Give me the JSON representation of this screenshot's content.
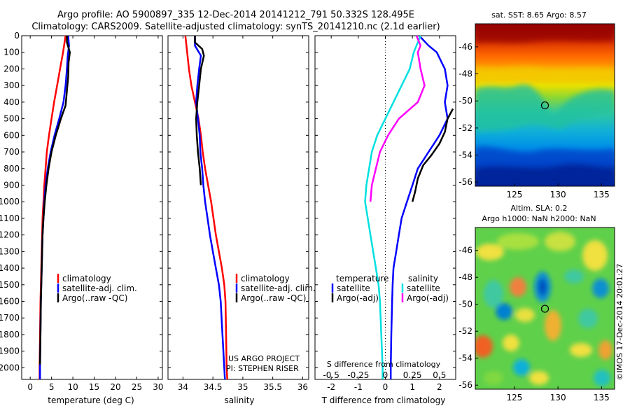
{
  "header": {
    "title_line1": "Argo profile: AO 5900897_335 12-Dec-2014 20141212_791 50.332S 128.495E",
    "title_line2": "Climatology: CARS2009. Satellite-adjusted climatology: synTS_20141210.nc (2.1d earlier)"
  },
  "credit": {
    "project": "US ARGO PROJECT",
    "pi": "PI: STEPHEN RISER",
    "imos": "©IMOS 17-Dec-2014 20:01:27"
  },
  "maps": {
    "sst_title": "sat. SST: 8.65  Argo: 8.57",
    "sla_title1": "Altim. SLA: 0.2",
    "sla_title2": "Argo h1000: NaN h2000: NaN"
  },
  "chart_data": [
    {
      "type": "line",
      "id": "temperature",
      "xlabel": "temperature (deg C)",
      "ylabel": "",
      "xlim": [
        -2,
        31
      ],
      "ylim": [
        2070,
        0
      ],
      "xticks": [
        0,
        5,
        10,
        15,
        20,
        25,
        30
      ],
      "yticks": [
        0,
        100,
        200,
        300,
        400,
        500,
        600,
        700,
        800,
        900,
        1000,
        1100,
        1200,
        1300,
        1400,
        1500,
        1600,
        1700,
        1800,
        1900,
        2000
      ],
      "legend": [
        "climatology",
        "satellite-adj. clim.",
        "Argo(..raw -QC)"
      ],
      "legend_position": "lower-left",
      "series": [
        {
          "name": "climatology",
          "color": "#ff0000",
          "points": [
            [
              8.3,
              0
            ],
            [
              7.7,
              100
            ],
            [
              7.0,
              200
            ],
            [
              6.3,
              300
            ],
            [
              5.6,
              400
            ],
            [
              5.0,
              500
            ],
            [
              4.4,
              600
            ],
            [
              3.9,
              700
            ],
            [
              3.6,
              800
            ],
            [
              3.3,
              900
            ],
            [
              3.1,
              1000
            ],
            [
              2.9,
              1100
            ],
            [
              2.8,
              1200
            ],
            [
              2.7,
              1300
            ],
            [
              2.6,
              1400
            ],
            [
              2.5,
              1500
            ],
            [
              2.4,
              1600
            ],
            [
              2.3,
              1800
            ],
            [
              2.2,
              2000
            ],
            [
              2.2,
              2070
            ]
          ]
        },
        {
          "name": "satellite-adj. clim.",
          "color": "#0000ff",
          "points": [
            [
              8.9,
              0
            ],
            [
              9.1,
              60
            ],
            [
              8.8,
              120
            ],
            [
              8.6,
              200
            ],
            [
              8.3,
              300
            ],
            [
              7.8,
              400
            ],
            [
              6.8,
              500
            ],
            [
              5.7,
              600
            ],
            [
              4.8,
              700
            ],
            [
              4.1,
              800
            ],
            [
              3.6,
              900
            ],
            [
              3.3,
              1000
            ],
            [
              3.1,
              1100
            ],
            [
              2.9,
              1200
            ],
            [
              2.8,
              1300
            ],
            [
              2.7,
              1400
            ],
            [
              2.6,
              1500
            ],
            [
              2.5,
              1600
            ],
            [
              2.4,
              1800
            ],
            [
              2.3,
              2000
            ],
            [
              2.3,
              2070
            ]
          ]
        },
        {
          "name": "Argo(..raw -QC)",
          "color": "#000000",
          "points": [
            [
              8.6,
              0
            ],
            [
              8.6,
              40
            ],
            [
              9.3,
              100
            ],
            [
              9.0,
              160
            ],
            [
              8.9,
              250
            ],
            [
              8.6,
              330
            ],
            [
              8.3,
              420
            ],
            [
              7.2,
              500
            ],
            [
              6.0,
              600
            ],
            [
              5.0,
              700
            ],
            [
              4.3,
              800
            ],
            [
              3.8,
              900
            ],
            [
              3.4,
              1000
            ],
            [
              3.1,
              1100
            ],
            [
              2.9,
              1200
            ],
            [
              2.8,
              1300
            ],
            [
              2.7,
              1400
            ],
            [
              2.6,
              1500
            ],
            [
              2.5,
              1600
            ],
            [
              2.4,
              1800
            ],
            [
              2.3,
              1980
            ]
          ]
        }
      ]
    },
    {
      "type": "line",
      "id": "salinity",
      "xlabel": "salinity",
      "ylabel": "",
      "xlim": [
        33.75,
        36.1
      ],
      "ylim": [
        2070,
        0
      ],
      "xticks": [
        34,
        34.5,
        35,
        35.5,
        36
      ],
      "legend": [
        "climatology",
        "satellite-adj. clim.",
        "Argo(..raw -QC)"
      ],
      "legend_position": "lower-right",
      "series": [
        {
          "name": "climatology",
          "color": "#ff0000",
          "points": [
            [
              34.04,
              0
            ],
            [
              34.07,
              100
            ],
            [
              34.1,
              200
            ],
            [
              34.14,
              300
            ],
            [
              34.2,
              400
            ],
            [
              34.26,
              500
            ],
            [
              34.3,
              600
            ],
            [
              34.33,
              700
            ],
            [
              34.37,
              800
            ],
            [
              34.42,
              900
            ],
            [
              34.47,
              1000
            ],
            [
              34.51,
              1100
            ],
            [
              34.55,
              1200
            ],
            [
              34.6,
              1300
            ],
            [
              34.65,
              1400
            ],
            [
              34.69,
              1500
            ],
            [
              34.71,
              1600
            ],
            [
              34.72,
              1800
            ],
            [
              34.73,
              2000
            ],
            [
              34.74,
              2070
            ]
          ]
        },
        {
          "name": "satellite-adj. clim.",
          "color": "#0000ff",
          "points": [
            [
              34.2,
              0
            ],
            [
              34.2,
              60
            ],
            [
              34.3,
              120
            ],
            [
              34.27,
              200
            ],
            [
              34.24,
              300
            ],
            [
              34.22,
              400
            ],
            [
              34.25,
              500
            ],
            [
              34.28,
              600
            ],
            [
              34.29,
              700
            ],
            [
              34.32,
              800
            ],
            [
              34.34,
              900
            ],
            [
              34.37,
              1000
            ],
            [
              34.41,
              1100
            ],
            [
              34.45,
              1200
            ],
            [
              34.5,
              1300
            ],
            [
              34.55,
              1400
            ],
            [
              34.6,
              1500
            ],
            [
              34.63,
              1600
            ],
            [
              34.66,
              1800
            ],
            [
              34.69,
              2000
            ],
            [
              34.7,
              2070
            ]
          ]
        },
        {
          "name": "Argo(..raw -QC)",
          "color": "#000000",
          "points": [
            [
              34.2,
              0
            ],
            [
              34.2,
              40
            ],
            [
              34.32,
              80
            ],
            [
              34.35,
              120
            ],
            [
              34.3,
              200
            ],
            [
              34.27,
              300
            ],
            [
              34.24,
              400
            ],
            [
              34.22,
              500
            ],
            [
              34.23,
              600
            ],
            [
              34.25,
              700
            ],
            [
              34.28,
              800
            ],
            [
              34.3,
              900
            ]
          ]
        }
      ]
    },
    {
      "type": "line",
      "id": "difference",
      "xlabel": "T difference from climatology",
      "xlabel2": "S difference from climatology",
      "ylabel": "",
      "xlim": [
        -2.6,
        2.6
      ],
      "ylim": [
        2070,
        0
      ],
      "xticks": [
        -2,
        -1,
        0,
        1,
        2
      ],
      "s_ticks": [
        "-0.5",
        "-0.25",
        "0",
        "0.25",
        "0.5"
      ],
      "legend_temperature_heading": "temperature",
      "legend_salinity_heading": "salinity",
      "legend_temperature": [
        "satellite",
        "Argo(-adj)"
      ],
      "legend_salinity": [
        "satellite",
        "Argo(-adj)"
      ],
      "legend_position": "lower-center",
      "series": [
        {
          "name": "temperature satellite",
          "color": "#0000ff",
          "points": [
            [
              1.25,
              0
            ],
            [
              1.6,
              60
            ],
            [
              1.9,
              100
            ],
            [
              2.2,
              200
            ],
            [
              2.3,
              300
            ],
            [
              2.2,
              400
            ],
            [
              2.3,
              500
            ],
            [
              2.0,
              600
            ],
            [
              1.6,
              700
            ],
            [
              1.2,
              800
            ],
            [
              1.0,
              900
            ],
            [
              0.8,
              1000
            ],
            [
              0.6,
              1100
            ],
            [
              0.5,
              1200
            ],
            [
              0.4,
              1300
            ],
            [
              0.3,
              1400
            ],
            [
              0.27,
              1500
            ],
            [
              0.25,
              1600
            ],
            [
              0.22,
              1800
            ],
            [
              0.2,
              2000
            ],
            [
              0.2,
              2070
            ]
          ]
        },
        {
          "name": "temperature Argo(-adj)",
          "color": "#000000",
          "points": [
            [
              2.5,
              440
            ],
            [
              2.3,
              500
            ],
            [
              2.2,
              580
            ],
            [
              2.0,
              650
            ],
            [
              1.7,
              720
            ],
            [
              1.4,
              780
            ],
            [
              1.2,
              860
            ],
            [
              1.1,
              940
            ],
            [
              1.0,
              1000
            ]
          ]
        },
        {
          "name": "salinity satellite",
          "color": "#00e0e0",
          "points": [
            [
              1.3,
              0
            ],
            [
              1.05,
              100
            ],
            [
              0.9,
              200
            ],
            [
              0.6,
              300
            ],
            [
              0.3,
              400
            ],
            [
              0.0,
              500
            ],
            [
              -0.3,
              600
            ],
            [
              -0.5,
              700
            ],
            [
              -0.6,
              800
            ],
            [
              -0.7,
              900
            ],
            [
              -0.75,
              1000
            ],
            [
              -0.65,
              1100
            ],
            [
              -0.55,
              1200
            ],
            [
              -0.45,
              1300
            ],
            [
              -0.35,
              1400
            ],
            [
              -0.25,
              1500
            ],
            [
              -0.2,
              1600
            ],
            [
              -0.15,
              1800
            ],
            [
              -0.1,
              2000
            ],
            [
              -0.1,
              2070
            ]
          ]
        },
        {
          "name": "salinity Argo(-adj)",
          "color": "#ff00ff",
          "points": [
            [
              1.15,
              0
            ],
            [
              1.3,
              60
            ],
            [
              1.2,
              100
            ],
            [
              1.3,
              200
            ],
            [
              1.45,
              300
            ],
            [
              1.2,
              400
            ],
            [
              0.5,
              500
            ],
            [
              0.1,
              600
            ],
            [
              -0.2,
              700
            ],
            [
              -0.35,
              800
            ],
            [
              -0.5,
              900
            ],
            [
              -0.55,
              1000
            ]
          ]
        }
      ]
    },
    {
      "type": "heatmap",
      "id": "sst_map",
      "title": "sat. SST: 8.65  Argo: 8.57",
      "xlim": [
        120.5,
        136.5
      ],
      "ylim": [
        -56.3,
        -44.3
      ],
      "xticks": [
        125,
        130,
        135
      ],
      "yticks": [
        -46,
        -48,
        -50,
        -52,
        -54,
        -56
      ],
      "marker": {
        "lon": 128.5,
        "lat": -50.33
      }
    },
    {
      "type": "heatmap",
      "id": "sla_map",
      "title": "Altim. SLA: 0.2",
      "subtitle": "Argo h1000: NaN h2000: NaN",
      "xlim": [
        120.5,
        136.5
      ],
      "ylim": [
        -56.3,
        -44.3
      ],
      "xticks": [
        125,
        130,
        135
      ],
      "yticks": [
        -46,
        -48,
        -50,
        -52,
        -54,
        -56
      ],
      "marker": {
        "lon": 128.5,
        "lat": -50.33
      }
    }
  ]
}
